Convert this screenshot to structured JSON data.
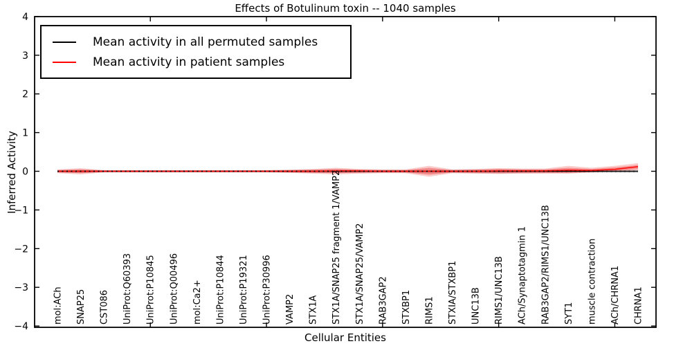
{
  "title": "Effects of Botulinum toxin -- 1040 samples",
  "legend": {
    "items": [
      {
        "label": "Mean activity in all permuted samples",
        "color": "#000000"
      },
      {
        "label": "Mean activity in patient samples",
        "color": "#ff0000"
      }
    ]
  },
  "chart_data": {
    "type": "line",
    "title": "Effects of Botulinum toxin -- 1040 samples",
    "xlabel": "Cellular Entities",
    "ylabel": "Inferred Activity",
    "ylim": [
      -4,
      4
    ],
    "yticks": [
      4,
      3,
      2,
      1,
      0,
      -1,
      -2,
      -3,
      -4
    ],
    "ytick_labels": [
      "4",
      "3",
      "2",
      "1",
      "0",
      "−1",
      "−2",
      "−3",
      "−4"
    ],
    "grid": false,
    "legend_position": "upper left",
    "categories": [
      "mol:ACh",
      "SNAP25",
      "CST086",
      "UniProt:Q60393",
      "UniProt:P10845",
      "UniProt:Q00496",
      "mol:Ca2+",
      "UniProt:P10844",
      "UniProt:P19321",
      "UniProt:P30996",
      "VAMP2",
      "STX1A",
      "STX1A/SNAP25 fragment 1/VAMP2",
      "STX1A/SNAP25/VAMP2",
      "RAB3GAP2",
      "STXBP1",
      "RIMS1",
      "STXIA/STXBP1",
      "UNC13B",
      "RIMS1/UNC13B",
      "ACh/Synaptotagmin 1",
      "RAB3GAP2/RIMS1/UNC13B",
      "SYT1",
      "muscle contraction",
      "ACh/CHRNA1",
      "CHRNA1"
    ],
    "series": [
      {
        "name": "Mean activity in all permuted samples",
        "color": "#000000",
        "values": [
          0,
          0,
          0,
          0,
          0,
          0,
          0,
          0,
          0,
          0,
          0,
          0,
          0,
          0,
          0,
          0,
          0,
          0,
          0,
          0,
          0,
          0,
          0,
          0,
          0,
          0
        ]
      },
      {
        "name": "Mean activity in patient samples",
        "color": "#ff0000",
        "values": [
          0,
          0,
          0,
          0,
          0,
          0,
          0,
          0,
          0,
          0,
          0,
          0,
          0.01,
          0.01,
          0,
          0,
          0,
          0,
          0,
          0.01,
          0.01,
          0.01,
          0.03,
          0.02,
          0.05,
          0.12
        ]
      }
    ],
    "bands": [
      {
        "name": "permuted-samples-range",
        "color": "rgba(130,130,130,0.28)",
        "upper": [
          0.03,
          0.04,
          0.03,
          0.03,
          0.03,
          0.03,
          0.03,
          0.03,
          0.03,
          0.03,
          0.035,
          0.04,
          0.045,
          0.04,
          0.035,
          0.035,
          0.04,
          0.04,
          0.045,
          0.05,
          0.045,
          0.04,
          0.04,
          0.035,
          0.035,
          0.04
        ],
        "lower": [
          -0.03,
          -0.04,
          -0.03,
          -0.03,
          -0.03,
          -0.03,
          -0.03,
          -0.03,
          -0.03,
          -0.03,
          -0.035,
          -0.04,
          -0.045,
          -0.04,
          -0.035,
          -0.04,
          -0.05,
          -0.045,
          -0.05,
          -0.055,
          -0.05,
          -0.045,
          -0.04,
          -0.04,
          -0.04,
          -0.04
        ]
      },
      {
        "name": "patient-samples-range-outer",
        "color": "rgba(239,50,50,0.25)",
        "upper": [
          0.05,
          0.08,
          0.03,
          0.03,
          0.03,
          0.03,
          0.03,
          0.03,
          0.03,
          0.03,
          0.04,
          0.06,
          0.09,
          0.06,
          0.05,
          0.05,
          0.14,
          0.05,
          0.06,
          0.08,
          0.07,
          0.07,
          0.14,
          0.09,
          0.14,
          0.21
        ],
        "lower": [
          -0.05,
          -0.08,
          -0.03,
          -0.03,
          -0.03,
          -0.03,
          -0.03,
          -0.03,
          -0.03,
          -0.03,
          -0.04,
          -0.06,
          -0.08,
          -0.06,
          -0.05,
          -0.05,
          -0.14,
          -0.05,
          -0.06,
          -0.07,
          -0.06,
          -0.06,
          -0.06,
          -0.03,
          -0.01,
          0.03
        ]
      },
      {
        "name": "patient-samples-range-inner",
        "color": "rgba(239,50,50,0.4)",
        "upper": [
          0.03,
          0.05,
          0.02,
          0.02,
          0.02,
          0.02,
          0.02,
          0.02,
          0.02,
          0.02,
          0.03,
          0.04,
          0.06,
          0.04,
          0.03,
          0.03,
          0.09,
          0.03,
          0.04,
          0.06,
          0.05,
          0.05,
          0.09,
          0.06,
          0.1,
          0.16
        ],
        "lower": [
          -0.03,
          -0.05,
          -0.02,
          -0.02,
          -0.02,
          -0.02,
          -0.02,
          -0.02,
          -0.02,
          -0.02,
          -0.03,
          -0.04,
          -0.05,
          -0.04,
          -0.03,
          -0.03,
          -0.09,
          -0.03,
          -0.04,
          -0.05,
          -0.04,
          -0.04,
          -0.04,
          -0.02,
          0.01,
          0.06
        ]
      }
    ],
    "zero_line": {
      "value": 0,
      "style": "dotted",
      "color": "#000000"
    },
    "top_axis_tick_indices": [
      4,
      9,
      14,
      19,
      24
    ]
  }
}
